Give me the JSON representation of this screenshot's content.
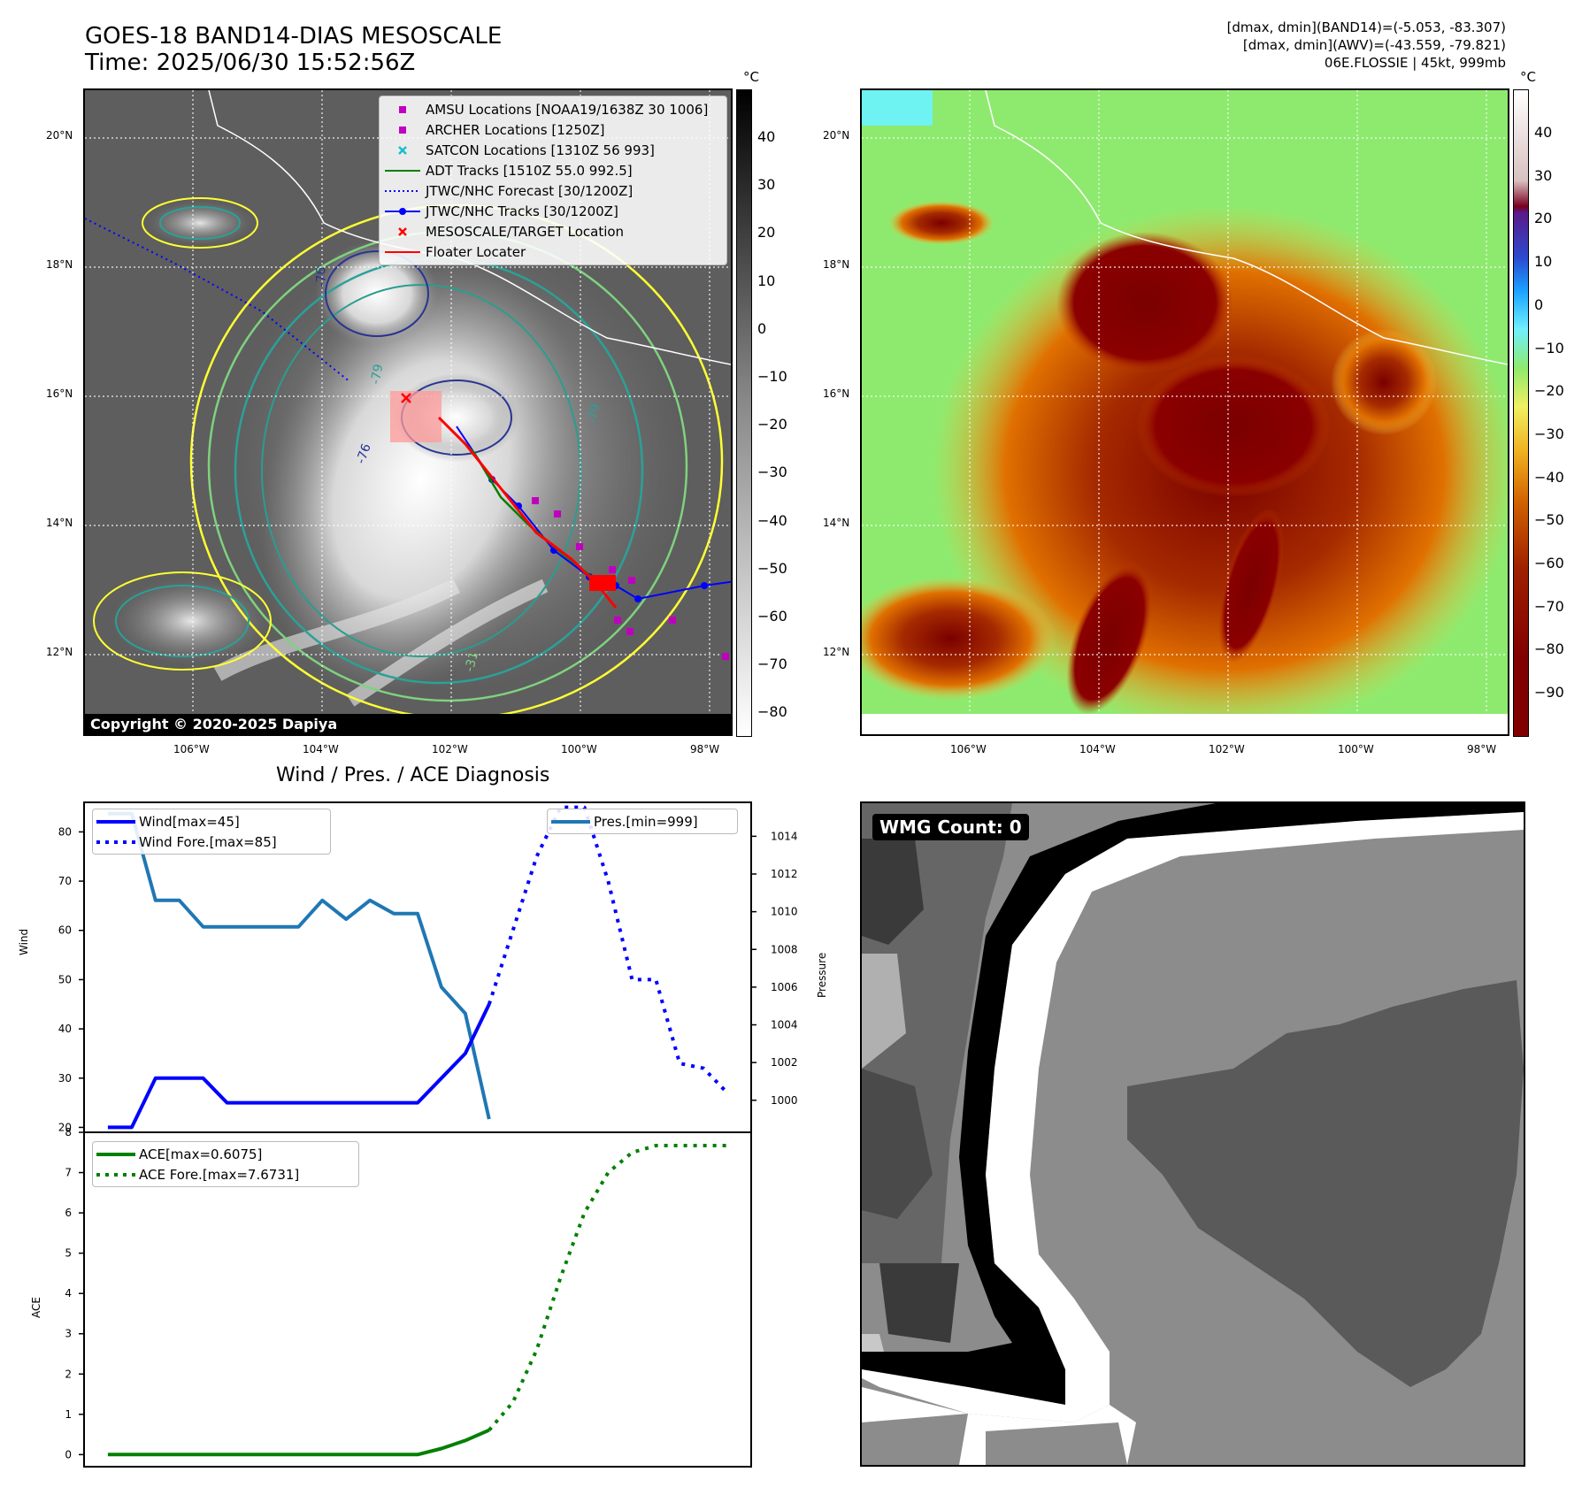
{
  "header": {
    "title_line1": "GOES-18 BAND14-DIAS MESOSCALE",
    "title_line2": "Time: 2025/06/30 15:52:56Z",
    "info_line1": "[dmax, dmin](BAND14)=(-5.053, -83.307)",
    "info_line2": "[dmax, dmin](AWV)=(-43.559, -79.821)",
    "info_line3": "06E.FLOSSIE | 45kt, 999mb"
  },
  "map": {
    "lat_labels": [
      "20°N",
      "18°N",
      "16°N",
      "14°N",
      "12°N"
    ],
    "lon_labels": [
      "106°W",
      "104°W",
      "102°W",
      "100°W",
      "98°W"
    ],
    "copyright": "Copyright © 2020-2025 Dapiya",
    "contour_labels": [
      "-76",
      "-79",
      "-76",
      "-79",
      "-31"
    ],
    "legend": [
      {
        "label": "AMSU Locations [NOAA19/1638Z 30 1006]",
        "color": "#bf00bf",
        "marker": "square"
      },
      {
        "label": "ARCHER Locations [1250Z]",
        "color": "#bf00bf",
        "marker": "square"
      },
      {
        "label": "SATCON Locations [1310Z 56 993]",
        "color": "#17becf",
        "marker": "x"
      },
      {
        "label": "ADT Tracks [1510Z 55.0 992.5]",
        "color": "#008000",
        "marker": "line"
      },
      {
        "label": "JTWC/NHC Forecast [30/1200Z]",
        "color": "#0000ff",
        "marker": "dotted"
      },
      {
        "label": "JTWC/NHC Tracks [30/1200Z]",
        "color": "#0000ff",
        "marker": "line-dot"
      },
      {
        "label": "MESOSCALE/TARGET Location",
        "color": "#ff0000",
        "marker": "x"
      },
      {
        "label": "Floater Locater",
        "color": "#ff0000",
        "marker": "line"
      }
    ]
  },
  "colorbars": {
    "unit": "°C",
    "gray_ticks": [
      "40",
      "30",
      "20",
      "10",
      "0",
      "−10",
      "−20",
      "−30",
      "−40",
      "−50",
      "−60",
      "−70",
      "−80"
    ],
    "color_ticks": [
      "40",
      "30",
      "20",
      "10",
      "0",
      "−10",
      "−20",
      "−30",
      "−40",
      "−50",
      "−60",
      "−70",
      "−80",
      "−90"
    ]
  },
  "diagnosis": {
    "title": "Wind / Pres. / ACE Diagnosis",
    "wind_ylabel": "Wind",
    "pres_ylabel": "Pressure",
    "ace_ylabel": "ACE",
    "wind_legend": [
      "Wind[max=45]",
      "Wind Fore.[max=85]"
    ],
    "pres_legend": "Pres.[min=999]",
    "ace_legend": [
      "ACE[max=0.6075]",
      "ACE Fore.[max=7.6731]"
    ],
    "colors": {
      "wind": "#0000ff",
      "pres": "#1f77b4",
      "ace": "#008000"
    }
  },
  "wmg": {
    "badge": "WMG Count: 0"
  },
  "chart_data": [
    {
      "type": "line",
      "title": "Wind / Pres. / ACE Diagnosis",
      "ylabel": "Wind",
      "ylim": [
        19,
        86
      ],
      "yticks": [
        20,
        30,
        40,
        50,
        60,
        70,
        80
      ],
      "y2label": "Pressure",
      "y2lim": [
        998.3,
        1015.8
      ],
      "y2ticks": [
        1000,
        1002,
        1004,
        1006,
        1008,
        1010,
        1012,
        1014
      ],
      "xlim": [
        0,
        28
      ],
      "series": [
        {
          "name": "Wind[max=45]",
          "axis": "left",
          "style": "solid",
          "x": [
            1,
            2,
            3,
            4,
            5,
            6,
            7,
            8,
            9,
            10,
            11,
            12,
            13,
            14,
            15,
            16,
            17
          ],
          "y": [
            20,
            20,
            30,
            30,
            30,
            25,
            25,
            25,
            25,
            25,
            25,
            25,
            25,
            25,
            30,
            35,
            45
          ]
        },
        {
          "name": "Wind Fore.[max=85]",
          "axis": "left",
          "style": "dotted",
          "x": [
            17,
            18,
            19,
            20,
            21,
            22,
            23,
            24,
            25,
            26,
            27
          ],
          "y": [
            45,
            60,
            75,
            85,
            85,
            70,
            50,
            50,
            33,
            32,
            27
          ]
        },
        {
          "name": "Pres.[min=999]",
          "axis": "right",
          "style": "solid",
          "x": [
            1,
            2,
            3,
            4,
            5,
            6,
            7,
            8,
            9,
            10,
            11,
            12,
            13,
            14,
            15,
            16,
            17
          ],
          "y": [
            1015.2,
            1015.2,
            1010.6,
            1010.6,
            1009.2,
            1009.2,
            1009.2,
            1009.2,
            1009.2,
            1010.6,
            1009.6,
            1010.6,
            1009.9,
            1009.9,
            1006.0,
            1004.6,
            999
          ]
        }
      ]
    },
    {
      "type": "line",
      "ylabel": "ACE",
      "ylim": [
        -0.3,
        8
      ],
      "yticks": [
        0,
        1,
        2,
        3,
        4,
        5,
        6,
        7,
        8
      ],
      "xlim": [
        0,
        28
      ],
      "series": [
        {
          "name": "ACE[max=0.6075]",
          "style": "solid",
          "x": [
            1,
            2,
            3,
            4,
            5,
            6,
            7,
            8,
            9,
            10,
            11,
            12,
            13,
            14,
            15,
            16,
            17
          ],
          "y": [
            0,
            0,
            0,
            0,
            0,
            0,
            0,
            0,
            0,
            0,
            0,
            0,
            0,
            0,
            0.15,
            0.35,
            0.6075
          ]
        },
        {
          "name": "ACE Fore.[max=7.6731]",
          "style": "dotted",
          "x": [
            17,
            18,
            19,
            20,
            21,
            22,
            23,
            24,
            25,
            26,
            27
          ],
          "y": [
            0.6075,
            1.3,
            2.6,
            4.4,
            6.0,
            7.0,
            7.5,
            7.67,
            7.67,
            7.67,
            7.67
          ]
        }
      ]
    }
  ]
}
